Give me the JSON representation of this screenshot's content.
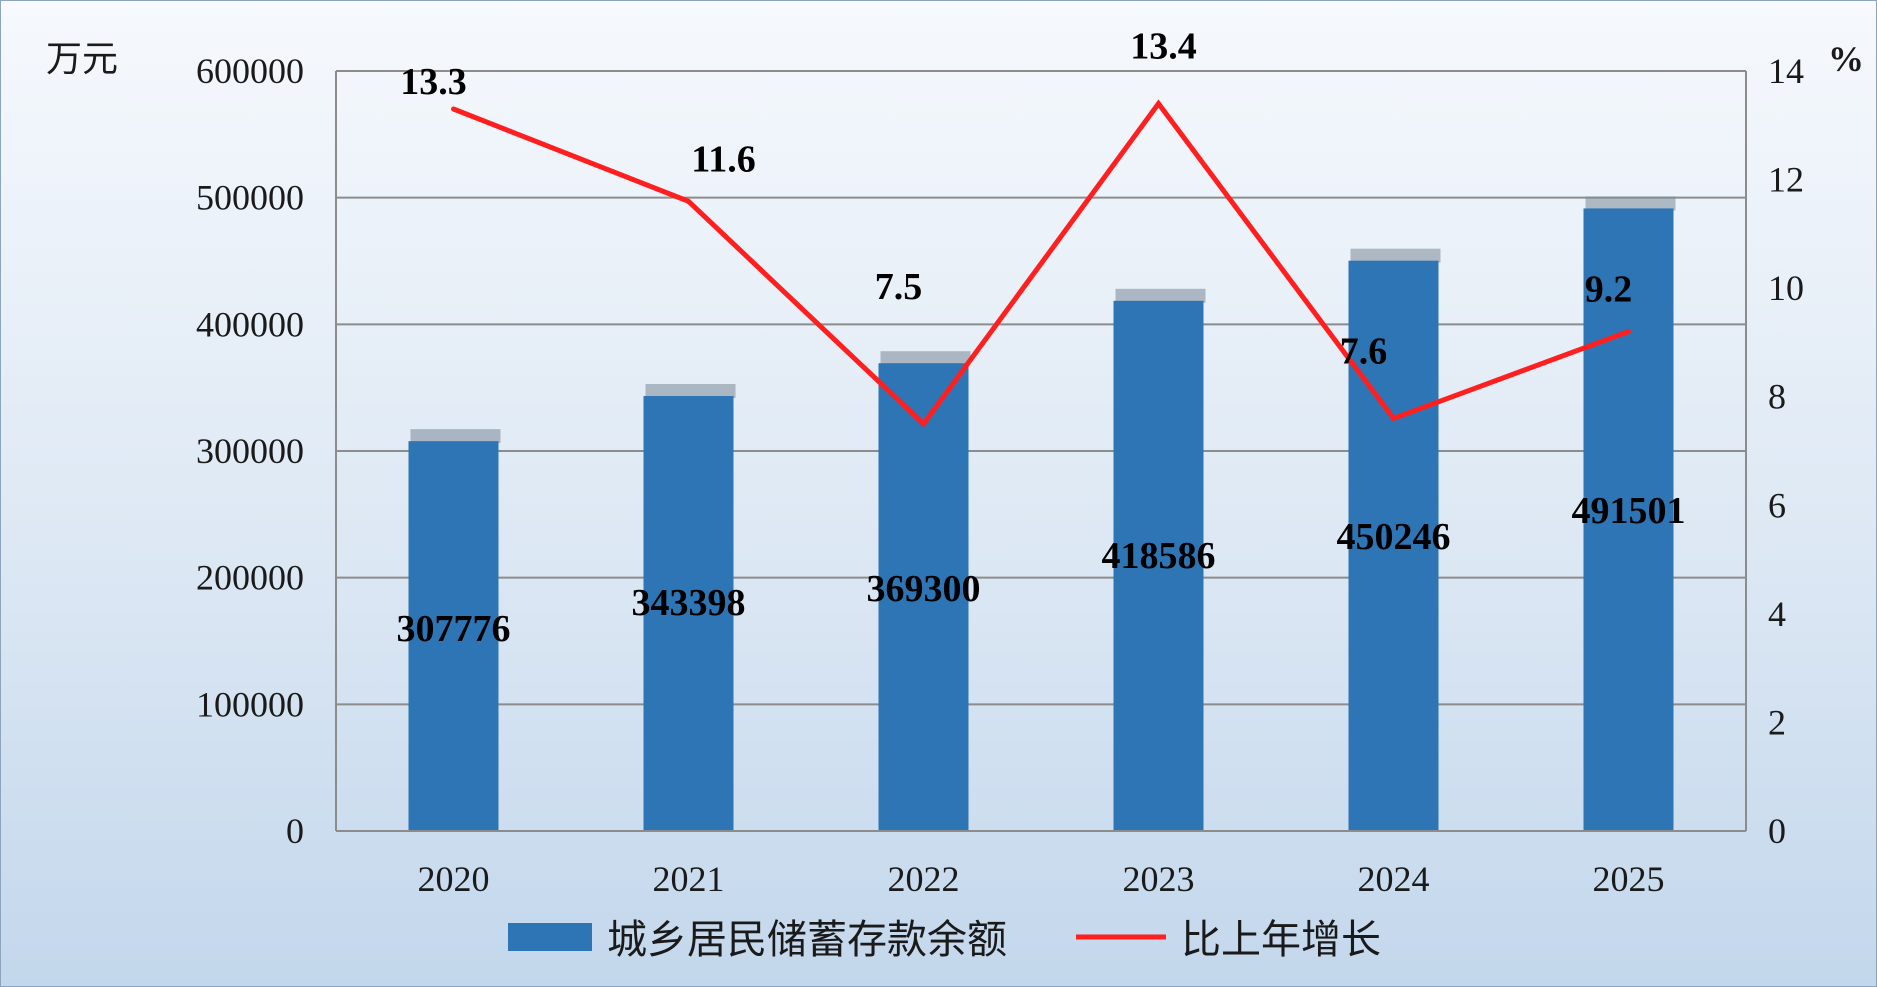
{
  "chart_data": {
    "type": "bar",
    "categories": [
      "2020",
      "2021",
      "2022",
      "2023",
      "2024",
      "2025"
    ],
    "series": [
      {
        "name": "城乡居民储蓄存款余额",
        "type": "bar",
        "axis": "left",
        "values": [
          307776,
          343398,
          369300,
          418586,
          450246,
          491501
        ],
        "color": "#2e75b6"
      },
      {
        "name": "比上年增长",
        "type": "line",
        "axis": "right",
        "values": [
          13.3,
          11.6,
          7.5,
          13.4,
          7.6,
          9.2
        ],
        "color": "#ff1f1f"
      }
    ],
    "y_left": {
      "unit": "万元",
      "ylim": [
        0,
        600000
      ],
      "ticks": [
        "0",
        "100000",
        "200000",
        "300000",
        "400000",
        "500000",
        "600000"
      ]
    },
    "y_right": {
      "unit": "%",
      "ylim": [
        0,
        14
      ],
      "ticks": [
        "0",
        "2",
        "4",
        "6",
        "8",
        "10",
        "12",
        "14"
      ]
    },
    "grid": true,
    "legend_position": "bottom"
  }
}
